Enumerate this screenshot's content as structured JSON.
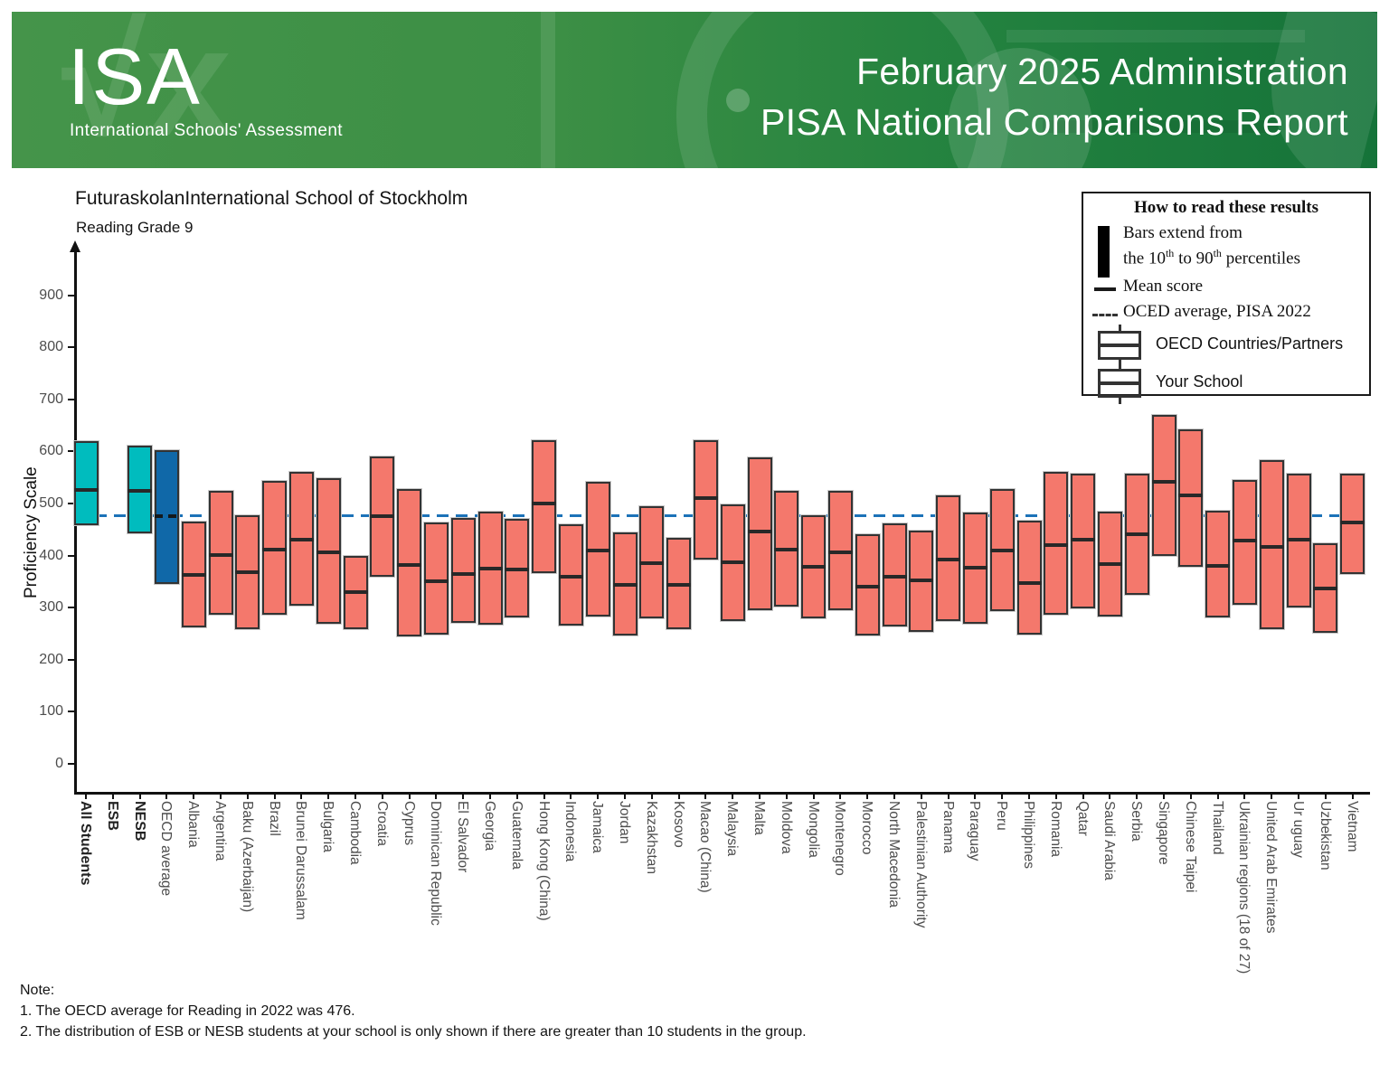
{
  "header": {
    "logo_title": "ISA",
    "logo_subtitle": "International Schools' Assessment",
    "line1": "February 2025 Administration",
    "line2": "PISA National Comparisons Report"
  },
  "page": {
    "school_title": "FuturaskolanInternational School of Stockholm",
    "subtitle": "Reading Grade 9"
  },
  "legend": {
    "title": "How to read these results",
    "bars_line1": "Bars extend from",
    "bars_line2": {
      "a": "the 10",
      "sup_a": "th",
      "b": " to 90",
      "sup_b": "th",
      "c": " percentiles"
    },
    "mean_label": "Mean score",
    "oecd_avg_label": "OCED average, PISA 2022",
    "countries_label": "OECD Countries/Partners",
    "school_label": "Your School"
  },
  "colors": {
    "country": "#F4786C",
    "school": "#00BCBE",
    "oecd_average": "#1068A8",
    "reference": "#1C72B8",
    "mean": "#282828"
  },
  "notes": {
    "heading": "Note:",
    "item1": " 1. The OECD average for Reading in 2022 was 476.",
    "item2": " 2. The distribution of ESB or NESB students at your school is only shown if there are greater than 10 students in the group."
  },
  "chart_data": {
    "type": "bar",
    "subtype": "floating-range-bars-10th-to-90th-percentile",
    "title": "FuturaskolanInternational School of Stockholm",
    "subtitle": "Reading Grade 9",
    "xlabel": "",
    "ylabel": "Proficiency Scale",
    "ylim": [
      0,
      950
    ],
    "yticks": [
      0,
      100,
      200,
      300,
      400,
      500,
      600,
      700,
      800,
      900
    ],
    "grid": false,
    "legend_position": "top-right",
    "reference_line": {
      "value": 476,
      "label": "OCED average, PISA 2022"
    },
    "bars": [
      {
        "label": "All Students",
        "low": 459,
        "high": 620,
        "mean": 526,
        "group": "school",
        "bold": true
      },
      {
        "label": "ESB",
        "low": null,
        "high": null,
        "mean": null,
        "group": "school",
        "bold": true
      },
      {
        "label": "NESB",
        "low": 442,
        "high": 611,
        "mean": 524,
        "group": "school",
        "bold": true
      },
      {
        "label": "OECD average",
        "low": 345,
        "high": 602,
        "mean": 476,
        "group": "oecd_average",
        "bold": false
      },
      {
        "label": "Albania",
        "low": 262,
        "high": 466,
        "mean": 362,
        "group": "country",
        "bold": false
      },
      {
        "label": "Argentina",
        "low": 286,
        "high": 524,
        "mean": 401,
        "group": "country",
        "bold": false
      },
      {
        "label": "Baku (Azerbaijan)",
        "low": 259,
        "high": 478,
        "mean": 368,
        "group": "country",
        "bold": false
      },
      {
        "label": "Brazil",
        "low": 286,
        "high": 544,
        "mean": 412,
        "group": "country",
        "bold": false
      },
      {
        "label": "Brunei Darussalam",
        "low": 303,
        "high": 561,
        "mean": 430,
        "group": "country",
        "bold": false
      },
      {
        "label": "Bulgaria",
        "low": 269,
        "high": 549,
        "mean": 407,
        "group": "country",
        "bold": false
      },
      {
        "label": "Cambodia",
        "low": 258,
        "high": 400,
        "mean": 330,
        "group": "country",
        "bold": false
      },
      {
        "label": "Croatia",
        "low": 359,
        "high": 591,
        "mean": 475,
        "group": "country",
        "bold": false
      },
      {
        "label": "Cyprus",
        "low": 245,
        "high": 527,
        "mean": 382,
        "group": "country",
        "bold": false
      },
      {
        "label": "Dominican Republic",
        "low": 249,
        "high": 464,
        "mean": 350,
        "group": "country",
        "bold": false
      },
      {
        "label": "El Salvador",
        "low": 270,
        "high": 472,
        "mean": 365,
        "group": "country",
        "bold": false
      },
      {
        "label": "Georgia",
        "low": 267,
        "high": 485,
        "mean": 375,
        "group": "country",
        "bold": false
      },
      {
        "label": "Guatemala",
        "low": 281,
        "high": 470,
        "mean": 373,
        "group": "country",
        "bold": false
      },
      {
        "label": "Hong Kong (China)",
        "low": 367,
        "high": 622,
        "mean": 500,
        "group": "country",
        "bold": false
      },
      {
        "label": "Indonesia",
        "low": 265,
        "high": 460,
        "mean": 360,
        "group": "country",
        "bold": false
      },
      {
        "label": "Jamaica",
        "low": 283,
        "high": 541,
        "mean": 410,
        "group": "country",
        "bold": false
      },
      {
        "label": "Jordan",
        "low": 247,
        "high": 444,
        "mean": 344,
        "group": "country",
        "bold": false
      },
      {
        "label": "Kazakhstan",
        "low": 280,
        "high": 494,
        "mean": 386,
        "group": "country",
        "bold": false
      },
      {
        "label": "Kosovo",
        "low": 259,
        "high": 434,
        "mean": 343,
        "group": "country",
        "bold": false
      },
      {
        "label": "Macao (China)",
        "low": 392,
        "high": 622,
        "mean": 511,
        "group": "country",
        "bold": false
      },
      {
        "label": "Malaysia",
        "low": 275,
        "high": 499,
        "mean": 388,
        "group": "country",
        "bold": false
      },
      {
        "label": "Malta",
        "low": 295,
        "high": 589,
        "mean": 447,
        "group": "country",
        "bold": false
      },
      {
        "label": "Moldova",
        "low": 302,
        "high": 525,
        "mean": 412,
        "group": "country",
        "bold": false
      },
      {
        "label": "Mongolia",
        "low": 279,
        "high": 477,
        "mean": 379,
        "group": "country",
        "bold": false
      },
      {
        "label": "Montenegro",
        "low": 295,
        "high": 525,
        "mean": 406,
        "group": "country",
        "bold": false
      },
      {
        "label": "Morocco",
        "low": 246,
        "high": 441,
        "mean": 340,
        "group": "country",
        "bold": false
      },
      {
        "label": "North Macedonia",
        "low": 264,
        "high": 462,
        "mean": 360,
        "group": "country",
        "bold": false
      },
      {
        "label": "Palestinian Authority",
        "low": 254,
        "high": 448,
        "mean": 352,
        "group": "country",
        "bold": false
      },
      {
        "label": "Panama",
        "low": 275,
        "high": 516,
        "mean": 393,
        "group": "country",
        "bold": false
      },
      {
        "label": "Paraguay",
        "low": 269,
        "high": 483,
        "mean": 376,
        "group": "country",
        "bold": false
      },
      {
        "label": "Peru",
        "low": 294,
        "high": 527,
        "mean": 409,
        "group": "country",
        "bold": false
      },
      {
        "label": "Philippines",
        "low": 249,
        "high": 467,
        "mean": 347,
        "group": "country",
        "bold": false
      },
      {
        "label": "Romania",
        "low": 287,
        "high": 560,
        "mean": 420,
        "group": "country",
        "bold": false
      },
      {
        "label": "Qatar",
        "low": 299,
        "high": 558,
        "mean": 430,
        "group": "country",
        "bold": false
      },
      {
        "label": "Saudi Arabia",
        "low": 283,
        "high": 485,
        "mean": 384,
        "group": "country",
        "bold": false
      },
      {
        "label": "Serbia",
        "low": 325,
        "high": 558,
        "mean": 441,
        "group": "country",
        "bold": false
      },
      {
        "label": "Singapore",
        "low": 400,
        "high": 671,
        "mean": 542,
        "group": "country",
        "bold": false
      },
      {
        "label": "Chinese Taipei",
        "low": 379,
        "high": 643,
        "mean": 516,
        "group": "country",
        "bold": false
      },
      {
        "label": "Thailand",
        "low": 282,
        "high": 486,
        "mean": 380,
        "group": "country",
        "bold": false
      },
      {
        "label": "Ukrainian regions (18 of 27)",
        "low": 306,
        "high": 545,
        "mean": 428,
        "group": "country",
        "bold": false
      },
      {
        "label": "United Arab Emirates",
        "low": 258,
        "high": 583,
        "mean": 417,
        "group": "country",
        "bold": false
      },
      {
        "label": "Ur uguay",
        "low": 300,
        "high": 558,
        "mean": 431,
        "group": "country",
        "bold": false
      },
      {
        "label": "Uzbekistan",
        "low": 251,
        "high": 424,
        "mean": 336,
        "group": "country",
        "bold": false
      },
      {
        "label": "Vietnam",
        "low": 364,
        "high": 558,
        "mean": 464,
        "group": "country",
        "bold": false
      }
    ]
  }
}
